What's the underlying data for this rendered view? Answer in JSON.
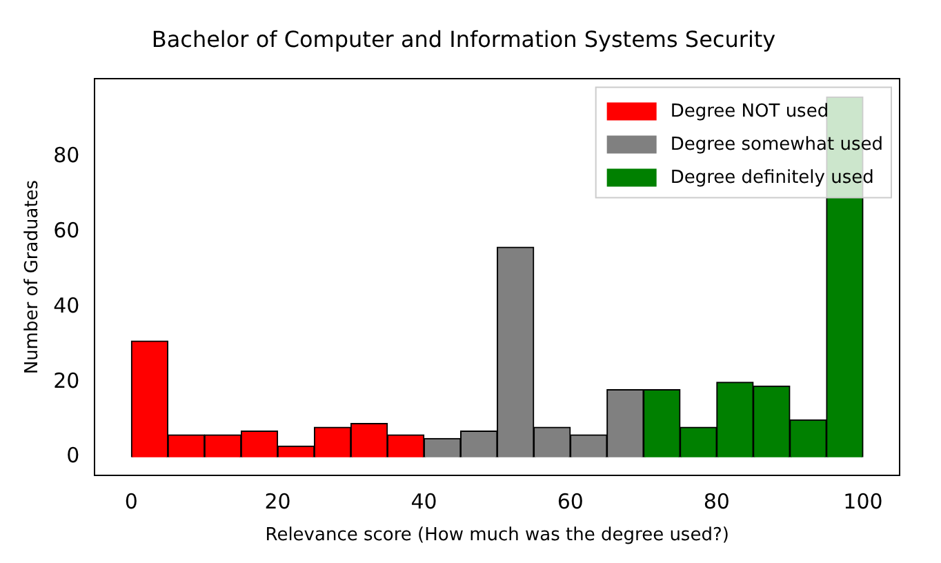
{
  "chart_data": {
    "type": "histogram",
    "title": "Bachelor of Computer and Information Systems Security",
    "xlabel": "Relevance score (How much was the degree used?)",
    "ylabel": "Number of Graduates",
    "bins": [
      0,
      5,
      10,
      15,
      20,
      25,
      30,
      35,
      40,
      45,
      50,
      55,
      60,
      65,
      70,
      75,
      80,
      85,
      90,
      95,
      100
    ],
    "series": [
      {
        "name": "Degree NOT used",
        "color": "#ff0000",
        "values": [
          31,
          6,
          6,
          7,
          3,
          8,
          9,
          6,
          null,
          null,
          null,
          null,
          null,
          null,
          null,
          null,
          null,
          null,
          null,
          null
        ]
      },
      {
        "name": "Degree somewhat used",
        "color": "#808080",
        "values": [
          null,
          null,
          null,
          null,
          null,
          null,
          null,
          null,
          5,
          7,
          56,
          8,
          6,
          18,
          null,
          null,
          null,
          null,
          null,
          null
        ]
      },
      {
        "name": "Degree definitely used",
        "color": "#008000",
        "values": [
          null,
          null,
          null,
          null,
          null,
          null,
          null,
          null,
          null,
          null,
          null,
          null,
          null,
          null,
          18,
          8,
          20,
          19,
          10,
          96
        ]
      }
    ],
    "xlim": [
      -5,
      105
    ],
    "ylim": [
      -4.8,
      100.8
    ],
    "xticks": [
      0,
      20,
      40,
      60,
      80,
      100
    ],
    "yticks": [
      0,
      20,
      40,
      60,
      80
    ],
    "grid": false,
    "legend": "top right"
  }
}
